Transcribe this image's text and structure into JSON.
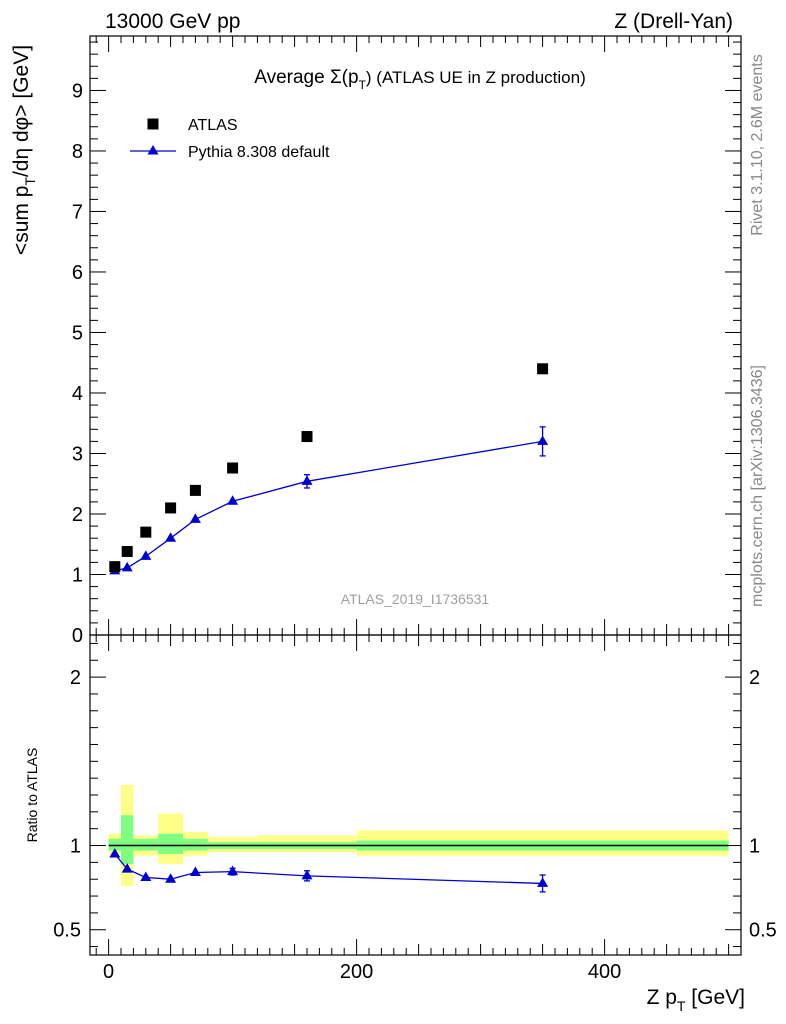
{
  "header": {
    "left": "13000 GeV pp",
    "right": "Z (Drell-Yan)"
  },
  "side": {
    "rivet": "Rivet 3.1.10,  2.6M events",
    "mcplots": "mcplots.cern.ch [arXiv:1306.3436]"
  },
  "colors": {
    "data": "#000000",
    "mc": "#0000d0",
    "band_inner": "#7fff7f",
    "band_outer": "#ffff88"
  },
  "chart_data": [
    {
      "type": "scatter",
      "title_prefix": "Average ",
      "title_sigma": "Σ(p",
      "title_sub": "T",
      "title_suffix": ") (ATLAS UE in Z production)",
      "ylabel": "<sum p",
      "ylabel_sub": "T",
      "ylabel_suffix": "/dη dφ> [GeV]",
      "analysis_label": "ATLAS_2019_I1736531",
      "xlim": [
        -15,
        510
      ],
      "ylim": [
        0,
        9.9
      ],
      "yticks": [
        0,
        1,
        2,
        3,
        4,
        5,
        6,
        7,
        8,
        9
      ],
      "legend_placement": "top-left",
      "series": [
        {
          "name": "ATLAS",
          "marker": "square",
          "x": [
            5,
            15,
            30,
            50,
            70,
            100,
            160,
            350
          ],
          "y": [
            1.13,
            1.38,
            1.7,
            2.1,
            2.39,
            2.76,
            3.28,
            4.4
          ]
        },
        {
          "name": "Pythia 8.308 default",
          "marker": "triangle",
          "x": [
            5,
            15,
            30,
            50,
            70,
            100,
            160,
            350
          ],
          "y": [
            1.06,
            1.11,
            1.3,
            1.6,
            1.91,
            2.21,
            2.54,
            3.2
          ],
          "yerr": [
            0.02,
            0.02,
            0.02,
            0.03,
            0.03,
            0.04,
            0.11,
            0.24
          ]
        }
      ]
    },
    {
      "type": "line",
      "ylabel": "Ratio to ATLAS",
      "xlabel": "Z p",
      "xlabel_sub": "T",
      "xlabel_suffix": " [GeV]",
      "xlim": [
        -15,
        510
      ],
      "ylim": [
        0.35,
        2.25
      ],
      "yticks": [
        0.5,
        1,
        2
      ],
      "xticks": [
        0,
        200,
        400
      ],
      "reference_line": 1,
      "bands": [
        {
          "x0": 0,
          "x1": 10,
          "inner": [
            0.97,
            1.04
          ],
          "outer": [
            0.95,
            1.07
          ]
        },
        {
          "x0": 10,
          "x1": 20,
          "inner": [
            0.89,
            1.18
          ],
          "outer": [
            0.76,
            1.36
          ]
        },
        {
          "x0": 20,
          "x1": 40,
          "inner": [
            0.97,
            1.04
          ],
          "outer": [
            0.94,
            1.06
          ]
        },
        {
          "x0": 40,
          "x1": 60,
          "inner": [
            0.95,
            1.07
          ],
          "outer": [
            0.89,
            1.19
          ]
        },
        {
          "x0": 60,
          "x1": 80,
          "inner": [
            0.97,
            1.04
          ],
          "outer": [
            0.94,
            1.08
          ]
        },
        {
          "x0": 80,
          "x1": 120,
          "inner": [
            0.98,
            1.02
          ],
          "outer": [
            0.96,
            1.05
          ]
        },
        {
          "x0": 120,
          "x1": 200,
          "inner": [
            0.98,
            1.02
          ],
          "outer": [
            0.96,
            1.06
          ]
        },
        {
          "x0": 200,
          "x1": 500,
          "inner": [
            0.97,
            1.03
          ],
          "outer": [
            0.94,
            1.09
          ]
        }
      ],
      "series": [
        {
          "name": "Pythia 8.308 default",
          "x": [
            5,
            15,
            30,
            50,
            70,
            100,
            160,
            350
          ],
          "y": [
            0.95,
            0.86,
            0.81,
            0.8,
            0.84,
            0.845,
            0.82,
            0.775
          ],
          "yerr": [
            0.01,
            0.01,
            0.01,
            0.01,
            0.015,
            0.02,
            0.03,
            0.05
          ]
        }
      ]
    }
  ]
}
